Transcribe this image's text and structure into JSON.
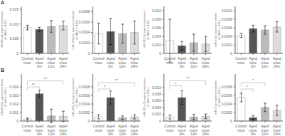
{
  "chart_data": [
    {
      "type": "bar",
      "title": "A",
      "categories": [
        "Control\nmice",
        "Aged\nmice\n3m",
        "Aged\nmice\n12m",
        "Aged\nmice\n24m"
      ],
      "values": [
        0.0088,
        0.0082,
        0.0092,
        0.0095
      ],
      "errors": [
        0.0008,
        0.0007,
        0.002,
        0.0015
      ],
      "colors": [
        "#ffffff",
        "#555555",
        "#bbbbbb",
        "#dddddd"
      ],
      "ylabel": "miR-20a-5p expression levels\n(2⁻ddCt ± S.D.)",
      "ylim": [
        0,
        0.016
      ],
      "yticks": [
        0,
        0.005,
        {
          "value": 0.01,
          "label": "0.010"
        },
        0.015
      ],
      "grid": false,
      "annotations": []
    },
    {
      "type": "bar",
      "categories": [
        "Control\nmice",
        "Aged\nmice\n3m",
        "Aged\nmice\n12m",
        "Aged\nmice\n24m"
      ],
      "values": [
        0.00038,
        0.00042,
        0.00038,
        0.0004
      ],
      "errors": [
        0.0002,
        0.00025,
        0.00018,
        0.00022
      ],
      "colors": [
        "#ffffff",
        "#555555",
        "#bbbbbb",
        "#dddddd"
      ],
      "ylabel": "miR-106a-5p expression levels\n(2⁻ddCt ± S.D.)",
      "ylim": [
        0,
        0.0009
      ],
      "yticks": [
        0,
        0.0002,
        0.0004,
        0.0006,
        0.0008
      ],
      "grid": false,
      "annotations": []
    },
    {
      "type": "bar",
      "categories": [
        "Control\nmice",
        "Aged\nmice\n3m",
        "Aged\nmice\n12m",
        "Aged\nmice\n24m"
      ],
      "values": [
        0.003,
        0.0018,
        0.0025,
        0.0022
      ],
      "errors": [
        0.005,
        0.001,
        0.002,
        0.0018
      ],
      "colors": [
        "#ffffff",
        "#555555",
        "#bbbbbb",
        "#dddddd"
      ],
      "ylabel": "miR-181-5p expression levels\n(2⁻ddCt ± S.D.)",
      "ylim": [
        0,
        0.011
      ],
      "yticks": [
        0,
        0.002,
        0.004,
        0.006,
        0.008,
        {
          "value": 0.01,
          "label": "0.010"
        }
      ],
      "grid": false,
      "annotations": []
    },
    {
      "type": "bar",
      "categories": [
        "Control\nmice",
        "Aged\nmice\n3m",
        "Aged\nmice\n12m",
        "Aged\nmice\n24m"
      ],
      "values": [
        0.00042,
        0.00058,
        0.00055,
        0.00062
      ],
      "errors": [
        5e-05,
        8e-05,
        0.0001,
        0.00012
      ],
      "colors": [
        "#ffffff",
        "#555555",
        "#bbbbbb",
        "#dddddd"
      ],
      "ylabel": "miR-9-5p expression levels\n(2⁻ddCt ± S.D.)",
      "ylim": [
        0,
        0.0011
      ],
      "yticks": [
        0,
        0.0002,
        0.0004,
        0.0006,
        0.0008,
        {
          "value": 0.001,
          "label": "0.0010"
        }
      ],
      "grid": false,
      "annotations": []
    },
    {
      "type": "bar",
      "title": "B",
      "categories": [
        "Control\nmice",
        "Aged\nmice\n3m",
        "Aged\nmice\n12m",
        "Aged\nmice\n24m"
      ],
      "values": [
        0.00025,
        0.0032,
        0.0006,
        0.00055
      ],
      "errors": [
        0.0001,
        0.0004,
        0.0008,
        0.0006
      ],
      "colors": [
        "#ffffff",
        "#555555",
        "#bbbbbb",
        "#dddddd"
      ],
      "ylabel": "miR-20a-5p expression levels\n(2⁻ddCt ± S.D.)",
      "ylim": [
        0,
        0.0055
      ],
      "yticks": [
        0,
        0.001,
        0.002,
        0.003,
        0.004
      ],
      "grid": false,
      "annotations": [
        {
          "x1": "Control\nmice",
          "x2": "Aged\nmice\n3m",
          "y": 0.004,
          "text": "**"
        },
        {
          "x1": "Control\nmice",
          "x2": "Aged\nmice\n24m",
          "y": 0.0047,
          "text": "**"
        }
      ]
    },
    {
      "type": "bar",
      "categories": [
        "Control\nmice",
        "Aged\nmice\n3m",
        "Aged\nmice\n12m",
        "Aged\nmice\n24m"
      ],
      "values": [
        0.0001,
        0.00055,
        8e-05,
        0.0001
      ],
      "errors": [
        5e-05,
        0.00015,
        4e-05,
        5e-05
      ],
      "colors": [
        "#ffffff",
        "#555555",
        "#bbbbbb",
        "#dddddd"
      ],
      "ylabel": "miR-106a-5p expression levels\n(2⁻ddCt ± S.D.)",
      "ylim": [
        0,
        0.0011
      ],
      "yticks": [
        0,
        0.0002,
        0.0004,
        0.0006,
        0.0008
      ],
      "grid": false,
      "annotations": [
        {
          "x1": "Control\nmice",
          "x2": "Aged\nmice\n3m",
          "y": 0.00075,
          "text": "*"
        },
        {
          "x1": "Control\nmice",
          "x2": "Aged\nmice\n24m",
          "y": 0.0009,
          "text": "**"
        }
      ]
    },
    {
      "type": "bar",
      "categories": [
        "Control\nmice",
        "Aged\nmice\n3m",
        "Aged\nmice\n12m",
        "Aged\nmice\n24m"
      ],
      "values": [
        0.0012,
        0.007,
        0.0012,
        0.0014
      ],
      "errors": [
        0.0006,
        0.002,
        0.0008,
        0.0007
      ],
      "colors": [
        "#ffffff",
        "#555555",
        "#bbbbbb",
        "#dddddd"
      ],
      "ylabel": "miR-181a-5p expression levels\n(2⁻ddCt ± S.D.)",
      "ylim": [
        0,
        0.014
      ],
      "yticks": [
        0,
        0.002,
        0.004,
        0.006,
        0.008,
        {
          "value": 0.01,
          "label": "0.010"
        }
      ],
      "grid": false,
      "annotations": [
        {
          "x1": "Control\nmice",
          "x2": "Aged\nmice\n3m",
          "y": 0.0105,
          "text": "*"
        },
        {
          "x1": "Control\nmice",
          "x2": "Aged\nmice\n24m",
          "y": 0.012,
          "text": "**"
        }
      ]
    },
    {
      "type": "bar",
      "categories": [
        "Control\nmice",
        "Aged\nmice\n3m",
        "Aged\nmice\n12m",
        "Aged\nmice\n24m"
      ],
      "values": [
        0.00055,
        8e-05,
        0.00032,
        0.00025
      ],
      "errors": [
        0.0001,
        5e-05,
        0.0001,
        0.00012
      ],
      "colors": [
        "#ffffff",
        "#555555",
        "#bbbbbb",
        "#dddddd"
      ],
      "ylabel": "miR-9-5p expression levels\n(2⁻ddCt ± S.D.)",
      "ylim": [
        0,
        0.0011
      ],
      "yticks": [
        0,
        0.0002,
        0.0004,
        0.0006,
        0.0008
      ],
      "grid": false,
      "annotations": [
        {
          "x1": "Control\nmice",
          "x2": "Aged\nmice\n3m",
          "y": 0.00075,
          "text": "*"
        },
        {
          "x1": "Control\nmice",
          "x2": "Aged\nmice\n12m",
          "y": 0.0009,
          "text": "*"
        }
      ]
    }
  ]
}
